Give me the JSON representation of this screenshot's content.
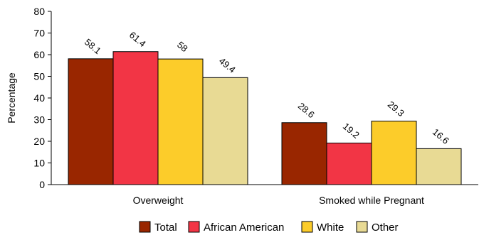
{
  "chart_data": {
    "type": "bar",
    "categories": [
      "Overweight",
      "Smoked while Pregnant"
    ],
    "series": [
      {
        "name": "Total",
        "color": "#992600",
        "values": [
          58.1,
          28.6
        ]
      },
      {
        "name": "African American",
        "color": "#f23545",
        "values": [
          61.4,
          19.2
        ]
      },
      {
        "name": "White",
        "color": "#fccc2a",
        "values": [
          58,
          29.3
        ]
      },
      {
        "name": "Other",
        "color": "#e8da94",
        "values": [
          49.4,
          16.6
        ]
      }
    ],
    "data_labels": [
      [
        "58.1",
        "28.6"
      ],
      [
        "61.4",
        "19.2"
      ],
      [
        "58",
        "29.3"
      ],
      [
        "49.4",
        "16.6"
      ]
    ],
    "yticks": [
      "0",
      "10",
      "20",
      "30",
      "40",
      "50",
      "60",
      "70",
      "80"
    ],
    "ylabel": "Percentage",
    "xlabel": "",
    "title": "",
    "ylim": [
      0,
      80
    ],
    "grid": false,
    "legend": "bottom"
  }
}
